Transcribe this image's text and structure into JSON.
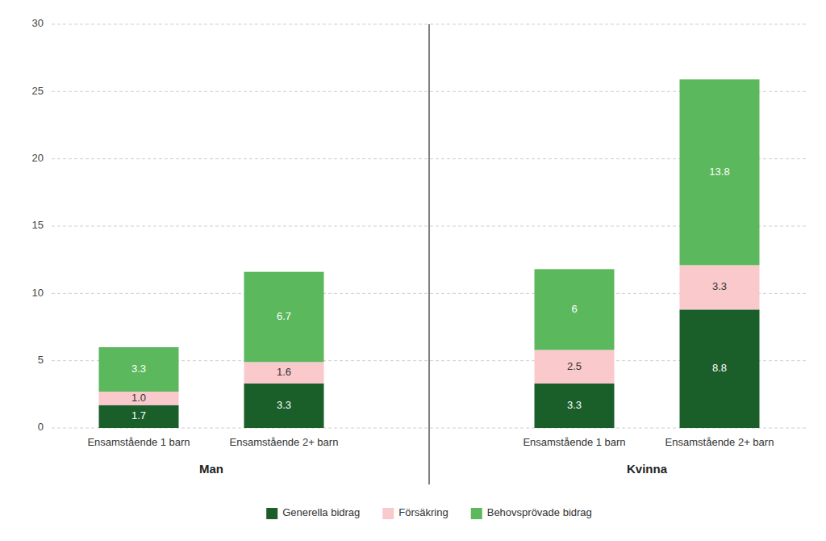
{
  "chart_data": {
    "type": "bar",
    "stacked": true,
    "categories": [
      "Ensamstående 1 barn",
      "Ensamstående 2+ barn",
      "Ensamstående 1 barn",
      "Ensamstående 2+ barn"
    ],
    "group_labels": [
      "Man",
      "Kvinna"
    ],
    "group_sizes": [
      2,
      2
    ],
    "series": [
      {
        "name": "Generella bidrag",
        "color": "#1a5e2a",
        "values": [
          1.7,
          3.3,
          3.3,
          8.8
        ]
      },
      {
        "name": "Försäkring",
        "color": "#f9c9cc",
        "values": [
          1.0,
          1.6,
          2.5,
          3.3
        ],
        "value_labels": [
          "1.0",
          "1.6",
          "2.5",
          "3.3"
        ]
      },
      {
        "name": "Behovsprövade bidrag",
        "color": "#5cb85c",
        "values": [
          3.3,
          6.7,
          6.0,
          13.8
        ]
      }
    ],
    "ylim": [
      0,
      30
    ],
    "yticks": [
      0,
      5,
      10,
      15,
      20,
      25,
      30
    ],
    "grid": true,
    "data_labels": true,
    "legend": "bottom"
  }
}
